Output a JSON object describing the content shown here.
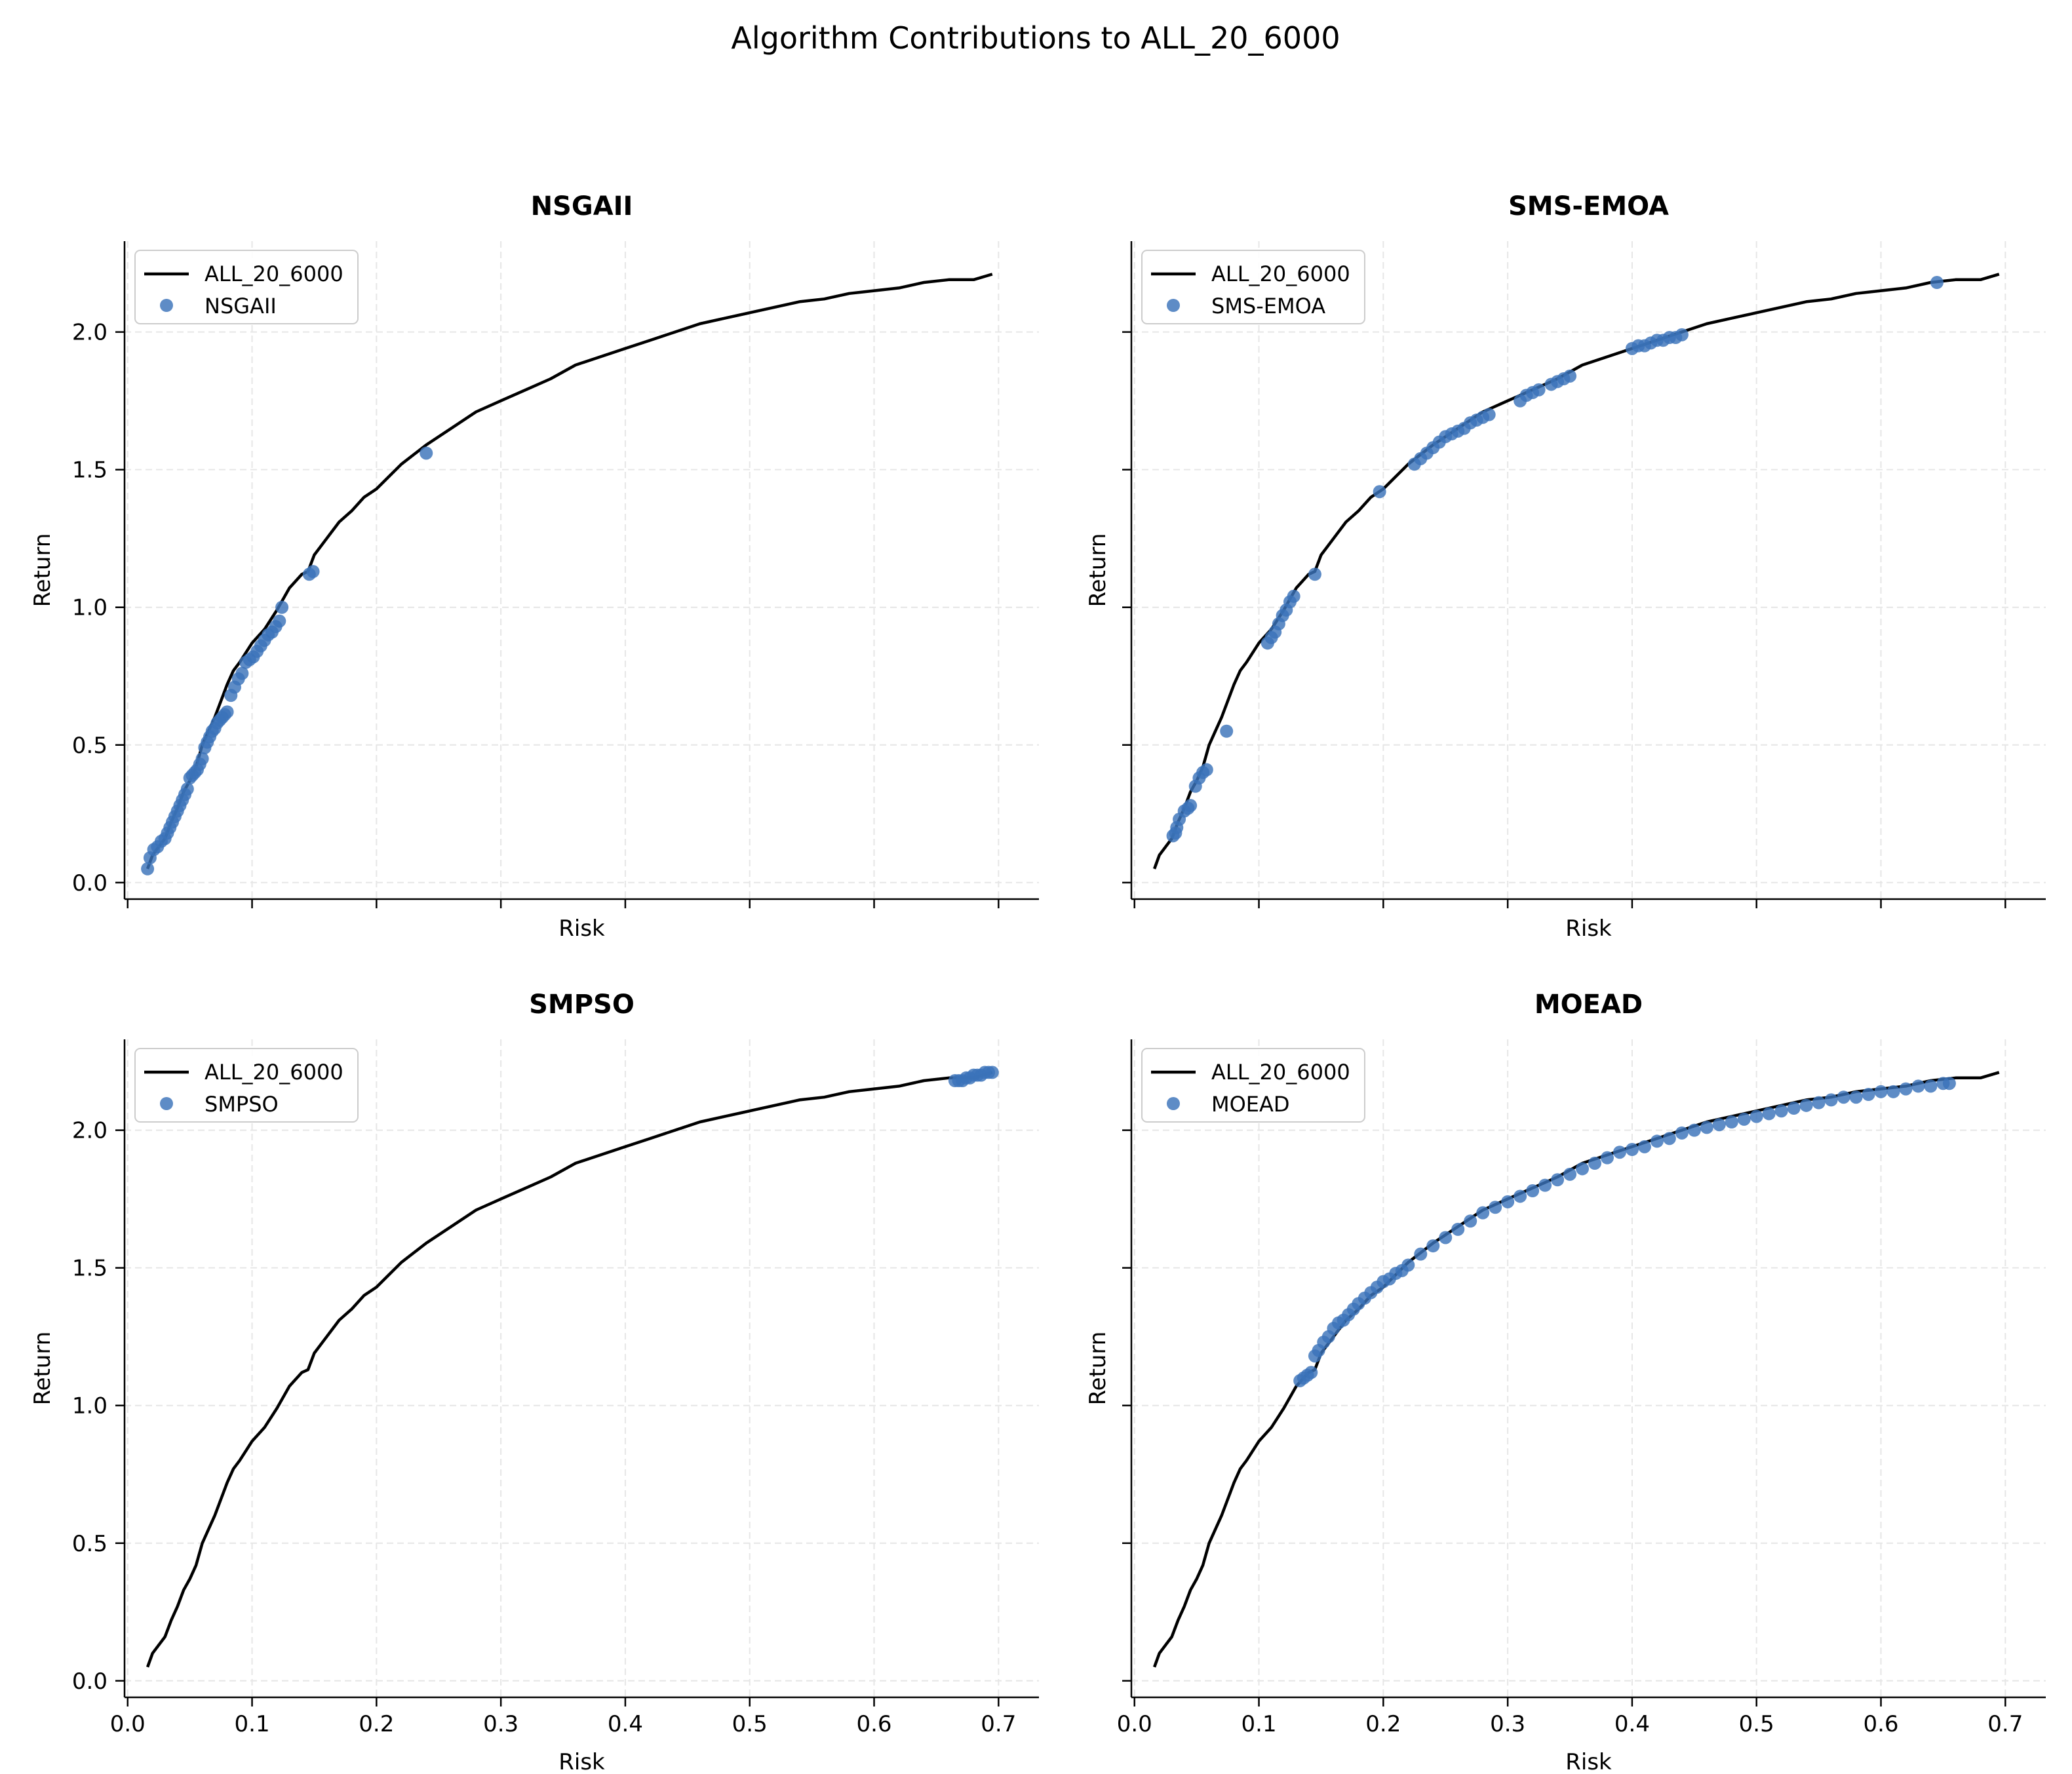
{
  "figure": {
    "suptitle": "Algorithm Contributions to ALL_20_6000"
  },
  "colors": {
    "frontier_line": "#000000",
    "points": "#3b73b9",
    "grid": "#e6e6e6"
  },
  "chart_data": [
    {
      "type": "scatter",
      "title": "NSGAII",
      "xlabel": "Risk",
      "ylabel": "Return",
      "xlim": [
        -0.0025,
        0.7325
      ],
      "ylim": [
        -0.06,
        2.33
      ],
      "xticks": [
        0.0,
        0.1,
        0.2,
        0.3,
        0.4,
        0.5,
        0.6,
        0.7
      ],
      "yticks": [
        0.0,
        0.5,
        1.0,
        1.5,
        2.0
      ],
      "show_x_ticklabels": false,
      "grid": true,
      "legend_position": "top-left",
      "series": [
        {
          "name": "ALL_20_6000",
          "kind": "line",
          "x": [
            0.016,
            0.02,
            0.025,
            0.03,
            0.035,
            0.04,
            0.045,
            0.05,
            0.055,
            0.06,
            0.065,
            0.07,
            0.075,
            0.08,
            0.085,
            0.09,
            0.1,
            0.11,
            0.12,
            0.13,
            0.14,
            0.145,
            0.15,
            0.16,
            0.17,
            0.18,
            0.19,
            0.2,
            0.22,
            0.24,
            0.26,
            0.28,
            0.3,
            0.32,
            0.34,
            0.36,
            0.38,
            0.4,
            0.42,
            0.44,
            0.46,
            0.48,
            0.5,
            0.52,
            0.54,
            0.56,
            0.58,
            0.6,
            0.62,
            0.64,
            0.66,
            0.68,
            0.695
          ],
          "y": [
            0.05,
            0.1,
            0.13,
            0.16,
            0.22,
            0.27,
            0.33,
            0.37,
            0.42,
            0.5,
            0.55,
            0.6,
            0.66,
            0.72,
            0.77,
            0.8,
            0.87,
            0.92,
            0.99,
            1.07,
            1.12,
            1.13,
            1.19,
            1.25,
            1.31,
            1.35,
            1.4,
            1.43,
            1.52,
            1.59,
            1.65,
            1.71,
            1.75,
            1.79,
            1.83,
            1.88,
            1.91,
            1.94,
            1.97,
            2.0,
            2.03,
            2.05,
            2.07,
            2.09,
            2.11,
            2.12,
            2.14,
            2.15,
            2.16,
            2.18,
            2.19,
            2.19,
            2.21
          ]
        },
        {
          "name": "NSGAII",
          "kind": "points",
          "x": [
            0.016,
            0.018,
            0.021,
            0.024,
            0.027,
            0.03,
            0.032,
            0.034,
            0.036,
            0.038,
            0.04,
            0.042,
            0.044,
            0.046,
            0.048,
            0.05,
            0.052,
            0.054,
            0.056,
            0.058,
            0.06,
            0.062,
            0.064,
            0.066,
            0.068,
            0.07,
            0.072,
            0.074,
            0.076,
            0.078,
            0.08,
            0.083,
            0.086,
            0.089,
            0.092,
            0.095,
            0.098,
            0.101,
            0.104,
            0.107,
            0.11,
            0.113,
            0.116,
            0.119,
            0.122,
            0.124,
            0.146,
            0.149,
            0.24
          ],
          "y": [
            0.05,
            0.09,
            0.12,
            0.13,
            0.15,
            0.16,
            0.18,
            0.2,
            0.22,
            0.24,
            0.26,
            0.28,
            0.3,
            0.32,
            0.34,
            0.38,
            0.39,
            0.4,
            0.41,
            0.43,
            0.45,
            0.49,
            0.51,
            0.53,
            0.55,
            0.56,
            0.58,
            0.59,
            0.6,
            0.61,
            0.62,
            0.68,
            0.71,
            0.74,
            0.76,
            0.8,
            0.81,
            0.82,
            0.84,
            0.86,
            0.88,
            0.9,
            0.91,
            0.93,
            0.95,
            1.0,
            1.12,
            1.13,
            1.56
          ]
        }
      ]
    },
    {
      "type": "scatter",
      "title": "SMS-EMOA",
      "xlabel": "Risk",
      "ylabel": "Return",
      "xlim": [
        -0.0025,
        0.7325
      ],
      "ylim": [
        -0.06,
        2.33
      ],
      "xticks": [
        0.0,
        0.1,
        0.2,
        0.3,
        0.4,
        0.5,
        0.6,
        0.7
      ],
      "yticks": [
        0.0,
        0.5,
        1.0,
        1.5,
        2.0
      ],
      "show_x_ticklabels": false,
      "show_y_ticklabels": false,
      "grid": true,
      "legend_position": "top-left",
      "series": [
        {
          "name": "ALL_20_6000",
          "kind": "line",
          "x": [
            0.016,
            0.02,
            0.025,
            0.03,
            0.035,
            0.04,
            0.045,
            0.05,
            0.055,
            0.06,
            0.065,
            0.07,
            0.075,
            0.08,
            0.085,
            0.09,
            0.1,
            0.11,
            0.12,
            0.13,
            0.14,
            0.145,
            0.15,
            0.16,
            0.17,
            0.18,
            0.19,
            0.2,
            0.22,
            0.24,
            0.26,
            0.28,
            0.3,
            0.32,
            0.34,
            0.36,
            0.38,
            0.4,
            0.42,
            0.44,
            0.46,
            0.48,
            0.5,
            0.52,
            0.54,
            0.56,
            0.58,
            0.6,
            0.62,
            0.64,
            0.66,
            0.68,
            0.695
          ],
          "y": [
            0.05,
            0.1,
            0.13,
            0.16,
            0.22,
            0.27,
            0.33,
            0.37,
            0.42,
            0.5,
            0.55,
            0.6,
            0.66,
            0.72,
            0.77,
            0.8,
            0.87,
            0.92,
            0.99,
            1.07,
            1.12,
            1.13,
            1.19,
            1.25,
            1.31,
            1.35,
            1.4,
            1.43,
            1.52,
            1.59,
            1.65,
            1.71,
            1.75,
            1.79,
            1.83,
            1.88,
            1.91,
            1.94,
            1.97,
            2.0,
            2.03,
            2.05,
            2.07,
            2.09,
            2.11,
            2.12,
            2.14,
            2.15,
            2.16,
            2.18,
            2.19,
            2.19,
            2.21
          ]
        },
        {
          "name": "SMS-EMOA",
          "kind": "points",
          "x": [
            0.031,
            0.033,
            0.034,
            0.036,
            0.04,
            0.043,
            0.045,
            0.049,
            0.052,
            0.055,
            0.058,
            0.074,
            0.107,
            0.11,
            0.113,
            0.116,
            0.119,
            0.122,
            0.125,
            0.128,
            0.145,
            0.197,
            0.225,
            0.23,
            0.235,
            0.24,
            0.245,
            0.25,
            0.255,
            0.26,
            0.265,
            0.27,
            0.275,
            0.28,
            0.285,
            0.31,
            0.315,
            0.32,
            0.325,
            0.335,
            0.34,
            0.345,
            0.35,
            0.4,
            0.405,
            0.41,
            0.415,
            0.42,
            0.425,
            0.43,
            0.435,
            0.44,
            0.645
          ],
          "y": [
            0.17,
            0.18,
            0.2,
            0.23,
            0.26,
            0.27,
            0.28,
            0.35,
            0.38,
            0.4,
            0.41,
            0.55,
            0.87,
            0.89,
            0.91,
            0.94,
            0.97,
            0.99,
            1.02,
            1.04,
            1.12,
            1.42,
            1.52,
            1.54,
            1.56,
            1.58,
            1.6,
            1.62,
            1.63,
            1.64,
            1.65,
            1.67,
            1.68,
            1.69,
            1.7,
            1.75,
            1.77,
            1.78,
            1.79,
            1.81,
            1.82,
            1.83,
            1.84,
            1.94,
            1.95,
            1.95,
            1.96,
            1.97,
            1.97,
            1.98,
            1.98,
            1.99,
            2.18
          ]
        }
      ]
    },
    {
      "type": "scatter",
      "title": "SMPSO",
      "xlabel": "Risk",
      "ylabel": "Return",
      "xlim": [
        -0.0025,
        0.7325
      ],
      "ylim": [
        -0.06,
        2.33
      ],
      "xticks": [
        0.0,
        0.1,
        0.2,
        0.3,
        0.4,
        0.5,
        0.6,
        0.7
      ],
      "yticks": [
        0.0,
        0.5,
        1.0,
        1.5,
        2.0
      ],
      "grid": true,
      "legend_position": "top-left",
      "series": [
        {
          "name": "ALL_20_6000",
          "kind": "line",
          "x": [
            0.016,
            0.02,
            0.025,
            0.03,
            0.035,
            0.04,
            0.045,
            0.05,
            0.055,
            0.06,
            0.065,
            0.07,
            0.075,
            0.08,
            0.085,
            0.09,
            0.1,
            0.11,
            0.12,
            0.13,
            0.14,
            0.145,
            0.15,
            0.16,
            0.17,
            0.18,
            0.19,
            0.2,
            0.22,
            0.24,
            0.26,
            0.28,
            0.3,
            0.32,
            0.34,
            0.36,
            0.38,
            0.4,
            0.42,
            0.44,
            0.46,
            0.48,
            0.5,
            0.52,
            0.54,
            0.56,
            0.58,
            0.6,
            0.62,
            0.64,
            0.66,
            0.68,
            0.695
          ],
          "y": [
            0.05,
            0.1,
            0.13,
            0.16,
            0.22,
            0.27,
            0.33,
            0.37,
            0.42,
            0.5,
            0.55,
            0.6,
            0.66,
            0.72,
            0.77,
            0.8,
            0.87,
            0.92,
            0.99,
            1.07,
            1.12,
            1.13,
            1.19,
            1.25,
            1.31,
            1.35,
            1.4,
            1.43,
            1.52,
            1.59,
            1.65,
            1.71,
            1.75,
            1.79,
            1.83,
            1.88,
            1.91,
            1.94,
            1.97,
            2.0,
            2.03,
            2.05,
            2.07,
            2.09,
            2.11,
            2.12,
            2.14,
            2.15,
            2.16,
            2.18,
            2.19,
            2.19,
            2.21
          ]
        },
        {
          "name": "SMPSO",
          "kind": "points",
          "x": [
            0.665,
            0.668,
            0.671,
            0.674,
            0.677,
            0.68,
            0.683,
            0.686,
            0.689,
            0.692,
            0.695
          ],
          "y": [
            2.18,
            2.18,
            2.18,
            2.19,
            2.19,
            2.2,
            2.2,
            2.2,
            2.21,
            2.21,
            2.21
          ]
        }
      ]
    },
    {
      "type": "scatter",
      "title": "MOEAD",
      "xlabel": "Risk",
      "ylabel": "Return",
      "xlim": [
        -0.0025,
        0.7325
      ],
      "ylim": [
        -0.06,
        2.33
      ],
      "xticks": [
        0.0,
        0.1,
        0.2,
        0.3,
        0.4,
        0.5,
        0.6,
        0.7
      ],
      "yticks": [
        0.0,
        0.5,
        1.0,
        1.5,
        2.0
      ],
      "show_y_ticklabels": false,
      "grid": true,
      "legend_position": "top-left",
      "series": [
        {
          "name": "ALL_20_6000",
          "kind": "line",
          "x": [
            0.016,
            0.02,
            0.025,
            0.03,
            0.035,
            0.04,
            0.045,
            0.05,
            0.055,
            0.06,
            0.065,
            0.07,
            0.075,
            0.08,
            0.085,
            0.09,
            0.1,
            0.11,
            0.12,
            0.13,
            0.14,
            0.145,
            0.15,
            0.16,
            0.17,
            0.18,
            0.19,
            0.2,
            0.22,
            0.24,
            0.26,
            0.28,
            0.3,
            0.32,
            0.34,
            0.36,
            0.38,
            0.4,
            0.42,
            0.44,
            0.46,
            0.48,
            0.5,
            0.52,
            0.54,
            0.56,
            0.58,
            0.6,
            0.62,
            0.64,
            0.66,
            0.68,
            0.695
          ],
          "y": [
            0.05,
            0.1,
            0.13,
            0.16,
            0.22,
            0.27,
            0.33,
            0.37,
            0.42,
            0.5,
            0.55,
            0.6,
            0.66,
            0.72,
            0.77,
            0.8,
            0.87,
            0.92,
            0.99,
            1.07,
            1.12,
            1.13,
            1.19,
            1.25,
            1.31,
            1.35,
            1.4,
            1.43,
            1.52,
            1.59,
            1.65,
            1.71,
            1.75,
            1.79,
            1.83,
            1.88,
            1.91,
            1.94,
            1.97,
            2.0,
            2.03,
            2.05,
            2.07,
            2.09,
            2.11,
            2.12,
            2.14,
            2.15,
            2.16,
            2.18,
            2.19,
            2.19,
            2.21
          ]
        },
        {
          "name": "MOEAD",
          "kind": "points",
          "x": [
            0.133,
            0.136,
            0.139,
            0.142,
            0.145,
            0.148,
            0.152,
            0.156,
            0.16,
            0.164,
            0.168,
            0.172,
            0.176,
            0.18,
            0.185,
            0.19,
            0.195,
            0.2,
            0.205,
            0.21,
            0.215,
            0.22,
            0.23,
            0.24,
            0.25,
            0.26,
            0.27,
            0.28,
            0.29,
            0.3,
            0.31,
            0.32,
            0.33,
            0.34,
            0.35,
            0.36,
            0.37,
            0.38,
            0.39,
            0.4,
            0.41,
            0.42,
            0.43,
            0.44,
            0.45,
            0.46,
            0.47,
            0.48,
            0.49,
            0.5,
            0.51,
            0.52,
            0.53,
            0.54,
            0.55,
            0.56,
            0.57,
            0.58,
            0.59,
            0.6,
            0.61,
            0.62,
            0.63,
            0.64,
            0.65,
            0.655
          ],
          "y": [
            1.09,
            1.1,
            1.11,
            1.12,
            1.18,
            1.2,
            1.23,
            1.25,
            1.28,
            1.3,
            1.31,
            1.33,
            1.35,
            1.37,
            1.39,
            1.41,
            1.43,
            1.45,
            1.46,
            1.48,
            1.49,
            1.51,
            1.55,
            1.58,
            1.61,
            1.64,
            1.67,
            1.7,
            1.72,
            1.74,
            1.76,
            1.78,
            1.8,
            1.82,
            1.84,
            1.86,
            1.88,
            1.9,
            1.92,
            1.93,
            1.94,
            1.96,
            1.97,
            1.99,
            2.0,
            2.01,
            2.02,
            2.03,
            2.04,
            2.05,
            2.06,
            2.07,
            2.08,
            2.09,
            2.1,
            2.11,
            2.12,
            2.12,
            2.13,
            2.14,
            2.14,
            2.15,
            2.16,
            2.16,
            2.17,
            2.17
          ]
        }
      ]
    }
  ]
}
